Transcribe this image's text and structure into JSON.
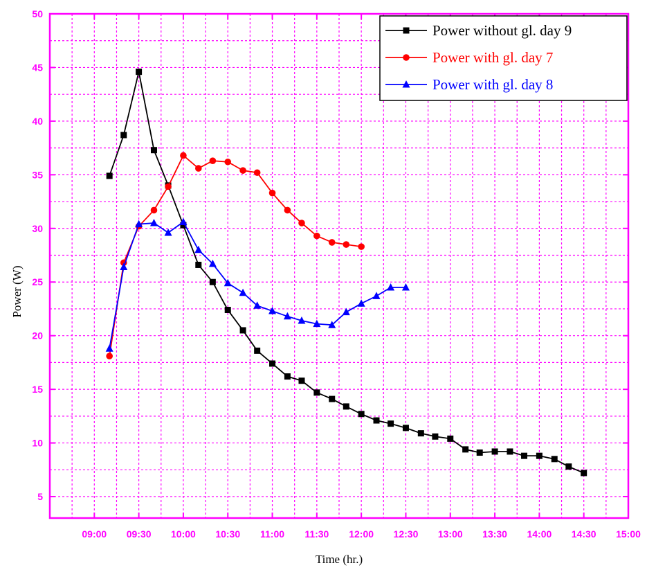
{
  "chart_data": {
    "type": "line",
    "title": "",
    "xlabel": "Time (hr.)",
    "ylabel": "Power (W)",
    "xlim": [
      8.5,
      15.0
    ],
    "ylim": [
      3,
      50
    ],
    "x_ticks": [
      9.0,
      9.5,
      10.0,
      10.5,
      11.0,
      11.5,
      12.0,
      12.5,
      13.0,
      13.5,
      14.0,
      14.5,
      15.0
    ],
    "x_tick_labels": [
      "09:00",
      "09:30",
      "10:00",
      "10:30",
      "11:00",
      "11:30",
      "12:00",
      "12:30",
      "13:00",
      "13:30",
      "14:00",
      "14:30",
      "15:00"
    ],
    "y_ticks": [
      5,
      10,
      15,
      20,
      25,
      30,
      35,
      40,
      45,
      50
    ],
    "y_tick_labels": [
      "5",
      "10",
      "15",
      "20",
      "25",
      "30",
      "35",
      "40",
      "45",
      "50"
    ],
    "grid": true,
    "legend_position": "top-right",
    "colors": {
      "axis": "#ff00ff",
      "grid": "#ff00ff"
    },
    "series": [
      {
        "name": "Power without gl. day 9",
        "color": "#000000",
        "marker": "square",
        "x": [
          9.17,
          9.33,
          9.5,
          9.67,
          9.83,
          10.0,
          10.17,
          10.33,
          10.5,
          10.67,
          10.83,
          11.0,
          11.17,
          11.33,
          11.5,
          11.67,
          11.83,
          12.0,
          12.17,
          12.33,
          12.5,
          12.67,
          12.83,
          13.0,
          13.17,
          13.33,
          13.5,
          13.67,
          13.83,
          14.0,
          14.17,
          14.33,
          14.5
        ],
        "y": [
          34.9,
          38.7,
          44.6,
          37.3,
          34.0,
          30.3,
          26.6,
          25.0,
          22.4,
          20.5,
          18.6,
          17.4,
          16.2,
          15.8,
          14.7,
          14.1,
          13.4,
          12.7,
          12.1,
          11.8,
          11.4,
          10.9,
          10.6,
          10.4,
          9.4,
          9.1,
          9.2,
          9.2,
          8.8,
          8.8,
          8.5,
          7.8,
          7.2
        ]
      },
      {
        "name": "Power with gl. day 7",
        "color": "#ff0000",
        "marker": "circle",
        "x": [
          9.17,
          9.33,
          9.5,
          9.67,
          9.83,
          10.0,
          10.17,
          10.33,
          10.5,
          10.67,
          10.83,
          11.0,
          11.17,
          11.33,
          11.5,
          11.67,
          11.83,
          12.0
        ],
        "y": [
          18.1,
          26.8,
          30.2,
          31.7,
          33.9,
          36.8,
          35.6,
          36.3,
          36.2,
          35.4,
          35.2,
          33.3,
          31.7,
          30.5,
          29.3,
          28.7,
          28.5,
          28.3
        ]
      },
      {
        "name": "Power with gl. day 8",
        "color": "#0000ff",
        "marker": "triangle",
        "x": [
          9.17,
          9.33,
          9.5,
          9.67,
          9.83,
          10.0,
          10.17,
          10.33,
          10.5,
          10.67,
          10.83,
          11.0,
          11.17,
          11.33,
          11.5,
          11.67,
          11.83,
          12.0,
          12.17,
          12.33,
          12.5
        ],
        "y": [
          18.8,
          26.4,
          30.4,
          30.5,
          29.6,
          30.6,
          28.0,
          26.7,
          24.9,
          24.0,
          22.8,
          22.3,
          21.8,
          21.4,
          21.1,
          21.0,
          22.2,
          23.0,
          23.7,
          24.5,
          24.5
        ]
      }
    ]
  }
}
